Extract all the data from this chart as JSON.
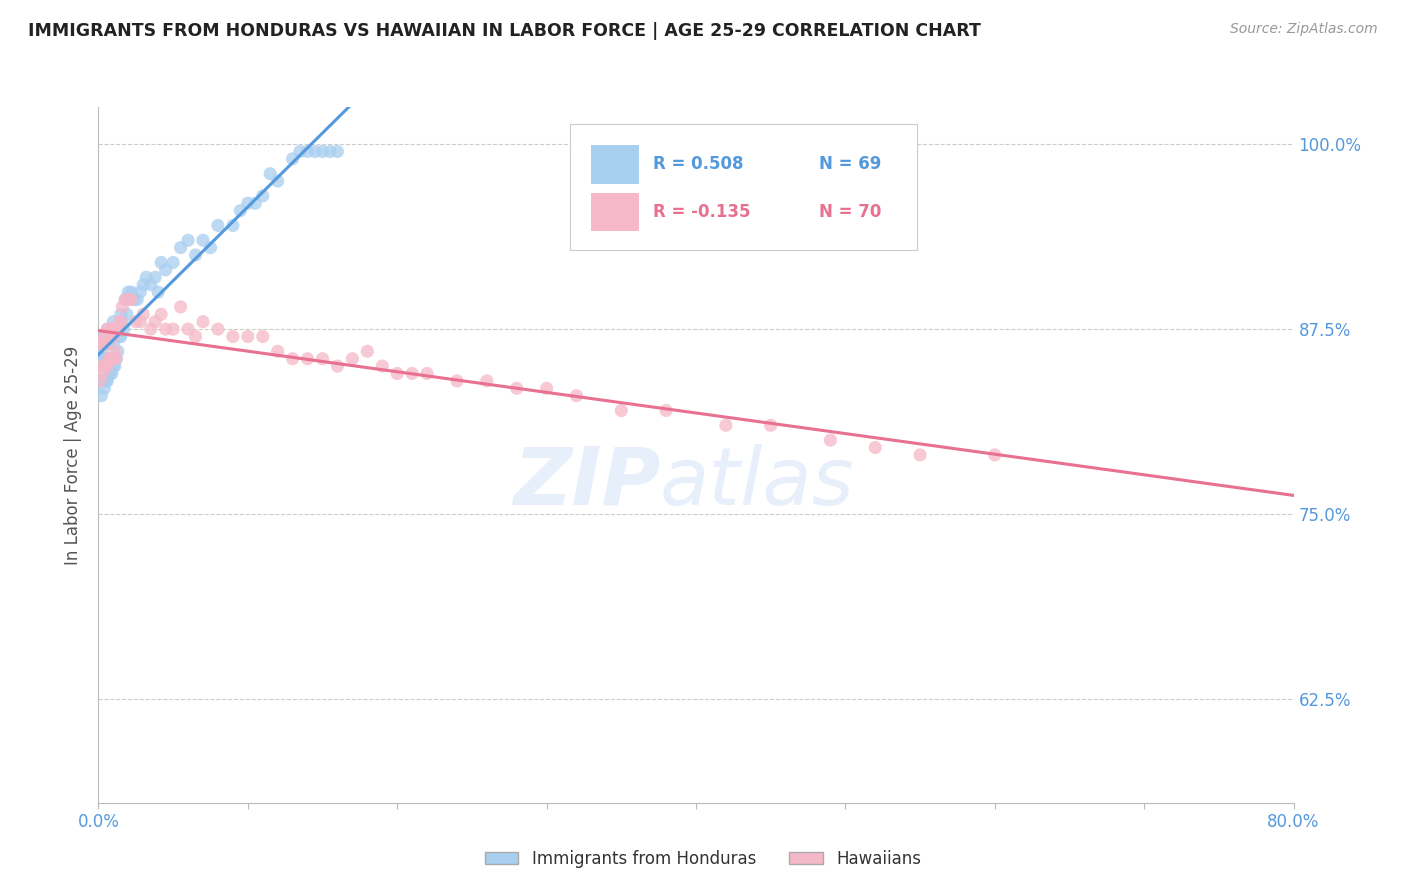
{
  "title": "IMMIGRANTS FROM HONDURAS VS HAWAIIAN IN LABOR FORCE | AGE 25-29 CORRELATION CHART",
  "source": "Source: ZipAtlas.com",
  "ylabel": "In Labor Force | Age 25-29",
  "legend_blue_label": "Immigrants from Honduras",
  "legend_pink_label": "Hawaiians",
  "legend_r_blue": "R = 0.508",
  "legend_n_blue": "N = 69",
  "legend_r_pink": "R = -0.135",
  "legend_n_pink": "N = 70",
  "blue_scatter_x": [
    0.001,
    0.002,
    0.002,
    0.003,
    0.003,
    0.003,
    0.004,
    0.004,
    0.005,
    0.005,
    0.005,
    0.006,
    0.006,
    0.006,
    0.007,
    0.007,
    0.008,
    0.008,
    0.009,
    0.009,
    0.01,
    0.01,
    0.01,
    0.011,
    0.011,
    0.012,
    0.012,
    0.013,
    0.013,
    0.014,
    0.015,
    0.015,
    0.016,
    0.017,
    0.018,
    0.019,
    0.02,
    0.022,
    0.024,
    0.026,
    0.028,
    0.03,
    0.032,
    0.035,
    0.038,
    0.04,
    0.042,
    0.045,
    0.05,
    0.055,
    0.06,
    0.065,
    0.07,
    0.075,
    0.08,
    0.09,
    0.095,
    0.1,
    0.105,
    0.11,
    0.115,
    0.12,
    0.13,
    0.135,
    0.14,
    0.145,
    0.15,
    0.155,
    0.16
  ],
  "blue_scatter_y": [
    0.84,
    0.83,
    0.86,
    0.84,
    0.855,
    0.87,
    0.835,
    0.855,
    0.84,
    0.855,
    0.87,
    0.84,
    0.855,
    0.875,
    0.845,
    0.865,
    0.845,
    0.87,
    0.845,
    0.875,
    0.85,
    0.865,
    0.88,
    0.85,
    0.875,
    0.855,
    0.875,
    0.86,
    0.875,
    0.87,
    0.87,
    0.885,
    0.88,
    0.875,
    0.895,
    0.885,
    0.9,
    0.9,
    0.895,
    0.895,
    0.9,
    0.905,
    0.91,
    0.905,
    0.91,
    0.9,
    0.92,
    0.915,
    0.92,
    0.93,
    0.935,
    0.925,
    0.935,
    0.93,
    0.945,
    0.945,
    0.955,
    0.96,
    0.96,
    0.965,
    0.98,
    0.975,
    0.99,
    0.995,
    0.995,
    0.995,
    0.995,
    0.995,
    0.995
  ],
  "pink_scatter_x": [
    0.001,
    0.002,
    0.002,
    0.003,
    0.003,
    0.004,
    0.004,
    0.005,
    0.005,
    0.006,
    0.006,
    0.007,
    0.007,
    0.008,
    0.008,
    0.009,
    0.009,
    0.01,
    0.01,
    0.011,
    0.011,
    0.012,
    0.012,
    0.013,
    0.014,
    0.015,
    0.016,
    0.018,
    0.02,
    0.022,
    0.025,
    0.028,
    0.03,
    0.035,
    0.038,
    0.042,
    0.045,
    0.05,
    0.055,
    0.06,
    0.065,
    0.07,
    0.08,
    0.09,
    0.1,
    0.11,
    0.12,
    0.13,
    0.14,
    0.15,
    0.16,
    0.17,
    0.18,
    0.19,
    0.2,
    0.21,
    0.22,
    0.24,
    0.26,
    0.28,
    0.3,
    0.32,
    0.35,
    0.38,
    0.42,
    0.45,
    0.49,
    0.52,
    0.55,
    0.6
  ],
  "pink_scatter_y": [
    0.84,
    0.85,
    0.865,
    0.845,
    0.865,
    0.85,
    0.87,
    0.85,
    0.865,
    0.85,
    0.875,
    0.855,
    0.87,
    0.855,
    0.875,
    0.855,
    0.875,
    0.855,
    0.87,
    0.86,
    0.875,
    0.855,
    0.875,
    0.875,
    0.88,
    0.88,
    0.89,
    0.895,
    0.895,
    0.895,
    0.88,
    0.88,
    0.885,
    0.875,
    0.88,
    0.885,
    0.875,
    0.875,
    0.89,
    0.875,
    0.87,
    0.88,
    0.875,
    0.87,
    0.87,
    0.87,
    0.86,
    0.855,
    0.855,
    0.855,
    0.85,
    0.855,
    0.86,
    0.85,
    0.845,
    0.845,
    0.845,
    0.84,
    0.84,
    0.835,
    0.835,
    0.83,
    0.82,
    0.82,
    0.81,
    0.81,
    0.8,
    0.795,
    0.79,
    0.79
  ],
  "blue_color": "#a8cef0",
  "pink_color": "#f5b8c8",
  "blue_line_color": "#5599dd",
  "pink_line_color": "#e87090",
  "background_color": "#ffffff",
  "grid_color": "#cccccc",
  "title_color": "#222222",
  "axis_label_color": "#5599dd",
  "xlim": [
    0.0,
    0.8
  ],
  "ylim": [
    0.555,
    1.025
  ],
  "yticks": [
    0.625,
    0.75,
    0.875,
    1.0
  ],
  "ytick_labels": [
    "62.5%",
    "75.0%",
    "87.5%",
    "100.0%"
  ],
  "watermark_zip": "ZIP",
  "watermark_atlas": "atlas",
  "watermark_color": "#c8ddf5",
  "watermark_alpha": 0.45
}
